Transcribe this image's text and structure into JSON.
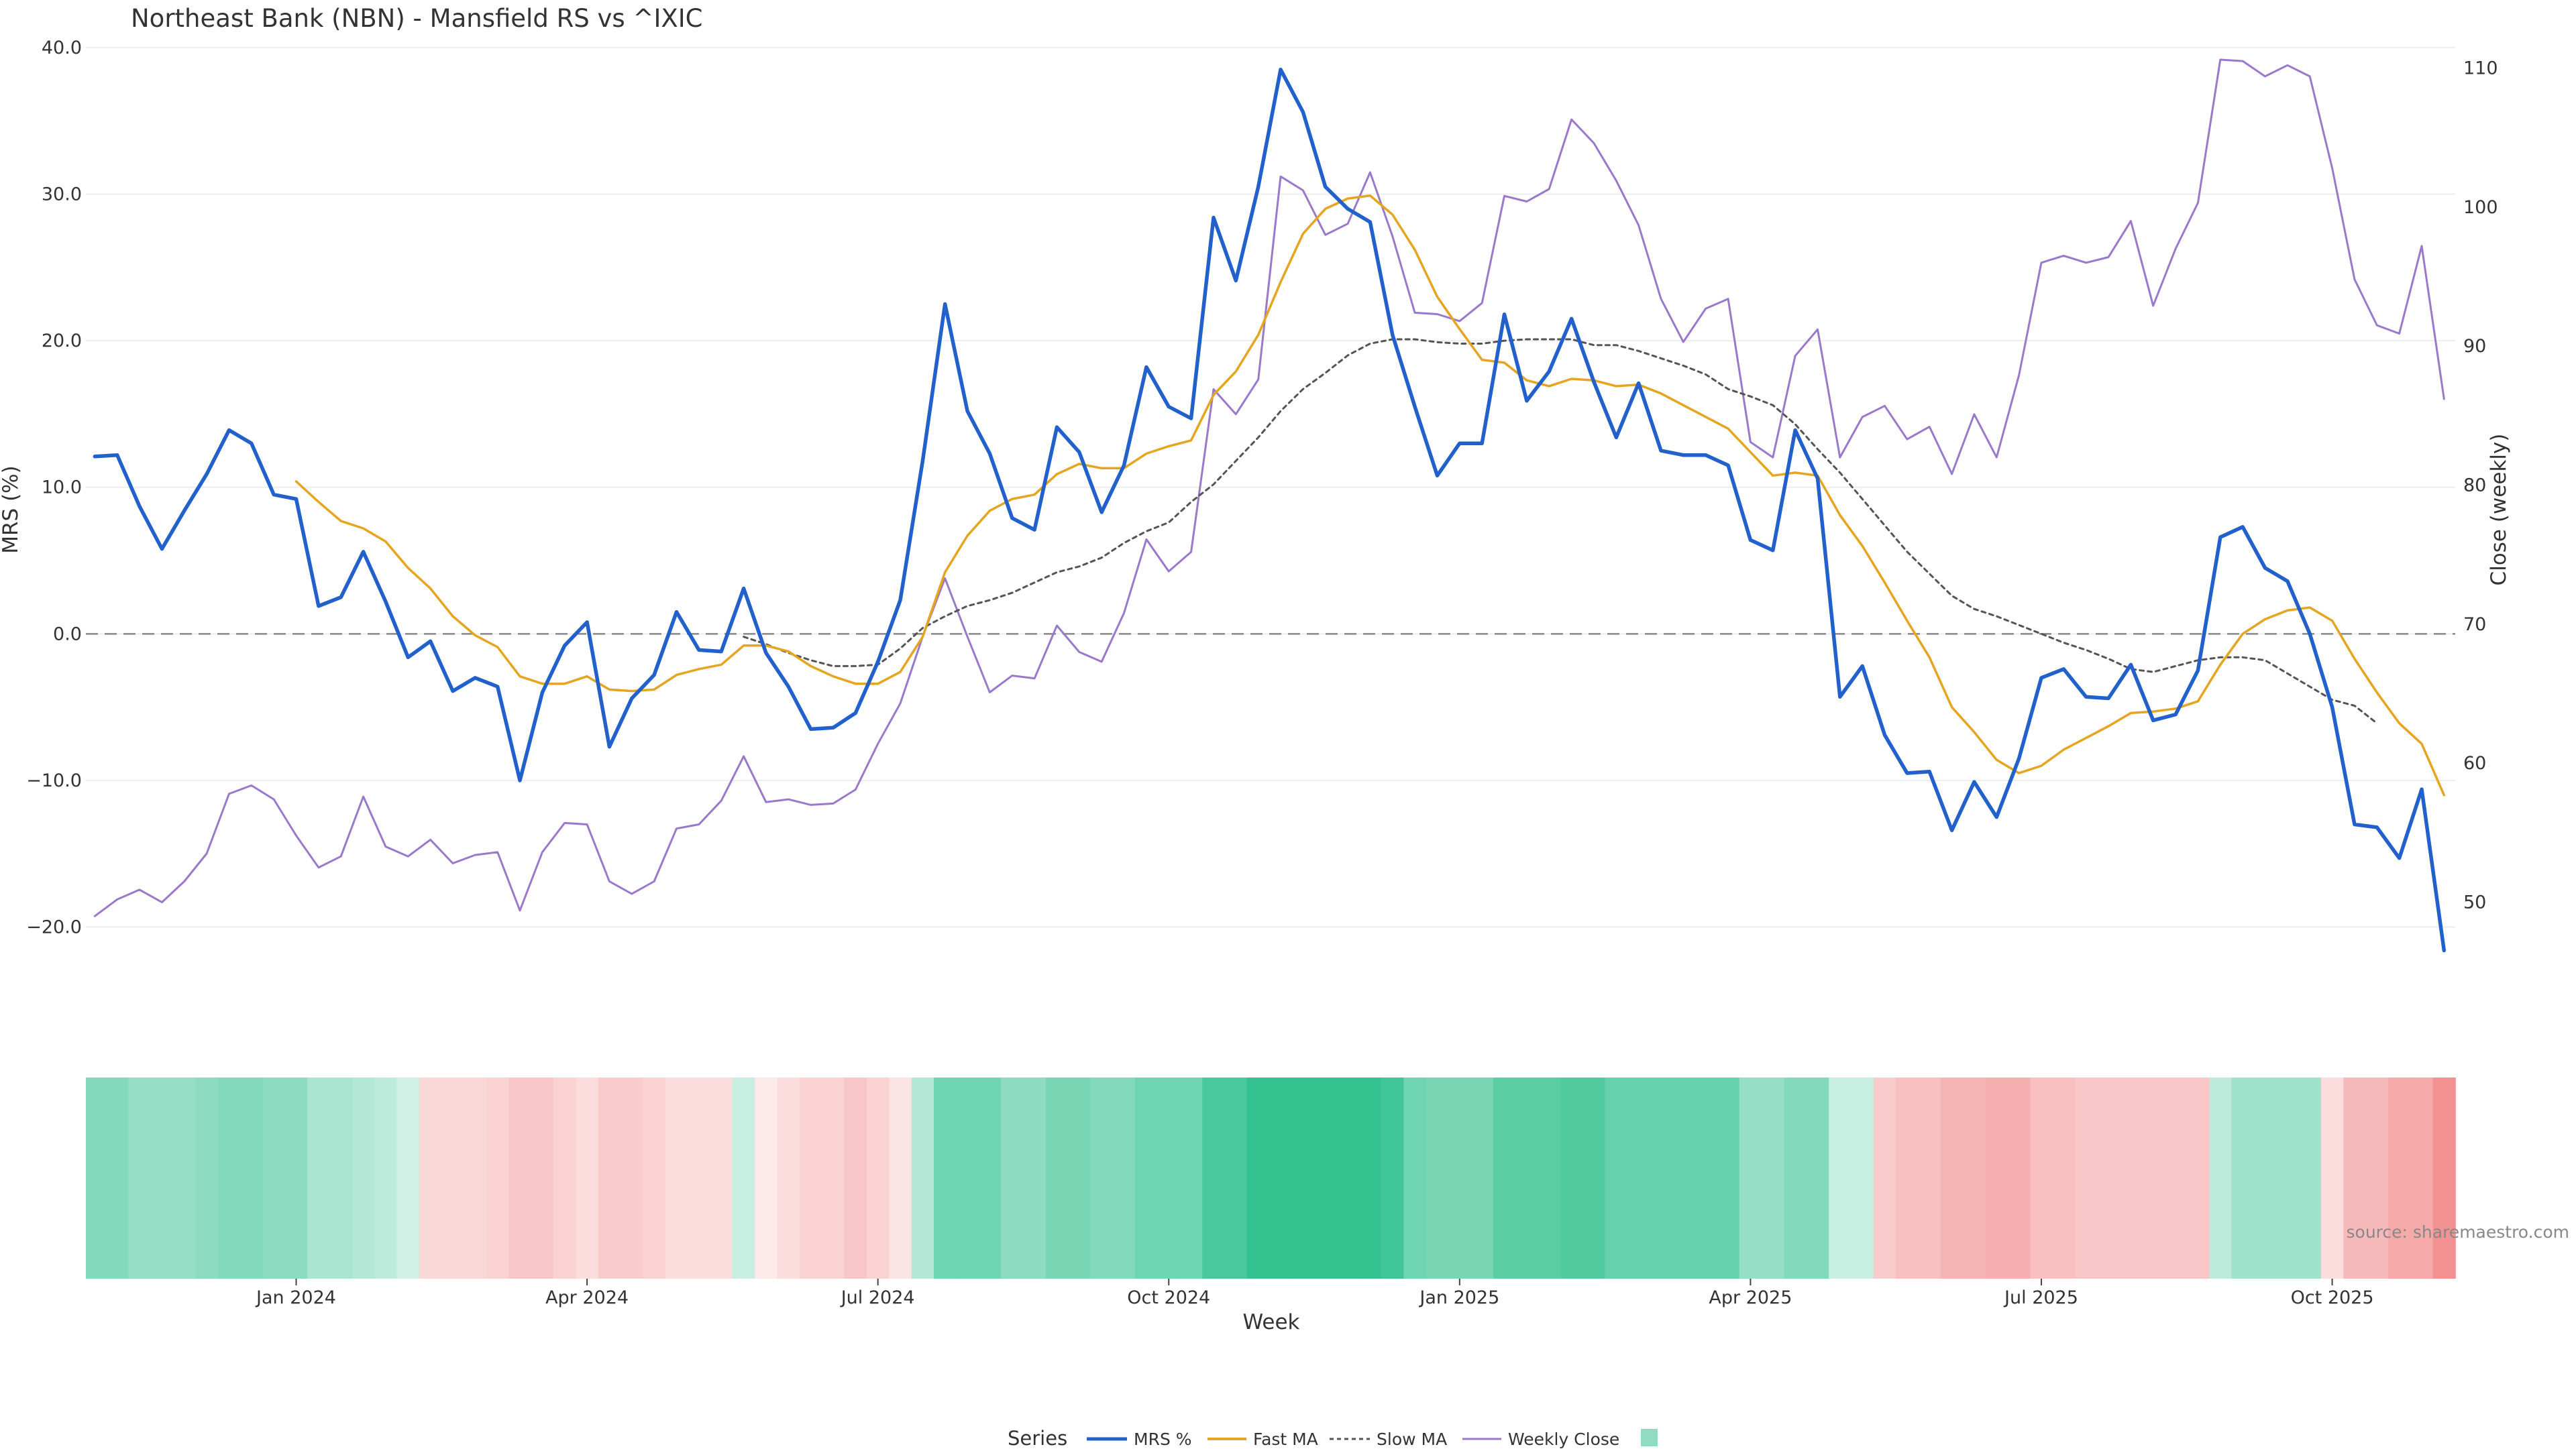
{
  "chart_data": {
    "type": "line",
    "title": "Northeast Bank (NBN) - Mansfield RS vs ^IXIC",
    "xlabel": "Week",
    "ylabel_left": "MRS (%)",
    "ylabel_right": "Close (weekly)",
    "ylim_left": [
      -24,
      40.5
    ],
    "ylim_right": [
      44,
      112
    ],
    "y_ticks_left": [
      40,
      30,
      20,
      10,
      0,
      -10,
      -20
    ],
    "y_tick_labels_left": [
      "40.0",
      "30.0",
      "20.0",
      "10.0",
      "0.0",
      "−10.0",
      "−20.0"
    ],
    "y_ticks_right": [
      110,
      100,
      90,
      80,
      70,
      60,
      50
    ],
    "y_tick_labels_right": [
      "110",
      "100",
      "90",
      "80",
      "70",
      "60",
      "50"
    ],
    "x_ticks": [
      9,
      22,
      35,
      48,
      61,
      74,
      87,
      100
    ],
    "x_tick_labels": [
      "Jan 2024",
      "Apr 2024",
      "Jul 2024",
      "Oct 2024",
      "Jan 2025",
      "Apr 2025",
      "Jul 2025",
      "Oct 2025"
    ],
    "x_range": [
      -0.4,
      105.5
    ],
    "reference_line": {
      "y": 0,
      "style": "dashed"
    },
    "grid": true,
    "legend": {
      "position": "bottom-center",
      "title": "Series",
      "entries": [
        "MRS %",
        "Fast MA",
        "Slow MA",
        "Weekly Close",
        ""
      ]
    },
    "source": "source: sharemaestro.com",
    "colors": {
      "mrs": "#2260cc",
      "fast": "#e6a520",
      "slow": "#555555",
      "close": "#9a79cc",
      "zero": "#888888",
      "grid": "#eeeeee",
      "heat_positive": "#2bbf8c",
      "heat_negative": "#f08080"
    },
    "series": [
      {
        "name": "MRS %",
        "axis": "left",
        "start": 0,
        "values": [
          12.1,
          12.2,
          8.7,
          5.8,
          8.4,
          10.9,
          13.9,
          13.0,
          9.5,
          9.2,
          1.9,
          2.5,
          5.6,
          2.2,
          -1.6,
          -0.5,
          -3.9,
          -3.0,
          -3.6,
          -10.0,
          -4.0,
          -0.8,
          0.8,
          -7.7,
          -4.4,
          -2.8,
          1.5,
          -1.1,
          -1.2,
          3.1,
          -1.3,
          -3.6,
          -6.5,
          -6.4,
          -5.4,
          -1.9,
          2.3,
          11.8,
          22.5,
          15.2,
          12.3,
          7.9,
          7.1,
          14.1,
          12.4,
          8.3,
          11.5,
          18.2,
          15.5,
          14.7,
          28.4,
          24.1,
          30.5,
          38.5,
          35.6,
          30.5,
          29.0,
          28.1,
          20.4,
          15.5,
          10.8,
          13.0,
          13.0,
          21.8,
          15.9,
          17.9,
          21.5,
          17.2,
          13.4,
          17.1,
          12.5,
          12.2,
          12.2,
          11.5,
          6.4,
          5.7,
          13.9,
          10.6,
          -4.3,
          -2.2,
          -6.9,
          -9.5,
          -9.4,
          -13.4,
          -10.1,
          -12.5,
          -8.5,
          -3.0,
          -2.4,
          -4.3,
          -4.4,
          -2.1,
          -5.9,
          -5.5,
          -2.5,
          6.6,
          7.3,
          4.5,
          3.6,
          0.0,
          -5.0,
          -13.0,
          -13.2,
          -15.3,
          -10.6,
          -21.6
        ]
      },
      {
        "name": "Fast MA",
        "axis": "left",
        "start": 9,
        "values": [
          10.4,
          9.0,
          7.7,
          7.2,
          6.3,
          4.5,
          3.1,
          1.2,
          -0.1,
          -0.9,
          -2.9,
          -3.4,
          -3.4,
          -2.9,
          -3.8,
          -3.9,
          -3.8,
          -2.8,
          -2.4,
          -2.1,
          -0.8,
          -0.8,
          -1.2,
          -2.2,
          -2.9,
          -3.4,
          -3.4,
          -2.6,
          -0.2,
          4.2,
          6.7,
          8.4,
          9.2,
          9.5,
          10.9,
          11.6,
          11.3,
          11.3,
          12.3,
          12.8,
          13.2,
          16.3,
          17.9,
          20.4,
          24.0,
          27.3,
          29.0,
          29.7,
          29.9,
          28.6,
          26.2,
          23.0,
          20.8,
          18.7,
          18.5,
          17.3,
          16.9,
          17.4,
          17.3,
          16.9,
          17.0,
          16.4,
          15.6,
          14.8,
          14.0,
          12.4,
          10.8,
          11.0,
          10.8,
          8.1,
          6.0,
          3.5,
          0.9,
          -1.6,
          -5.0,
          -6.7,
          -8.6,
          -9.5,
          -9.0,
          -7.9,
          -7.1,
          -6.3,
          -5.4,
          -5.3,
          -5.1,
          -4.6,
          -2.1,
          0.0,
          1.0,
          1.6,
          1.8,
          0.9,
          -1.7,
          -4.0,
          -6.1,
          -7.5,
          -11.0
        ]
      },
      {
        "name": "Slow MA",
        "axis": "left",
        "start": 29,
        "values": [
          -0.2,
          -0.7,
          -1.3,
          -1.8,
          -2.2,
          -2.2,
          -2.1,
          -1.0,
          0.4,
          1.2,
          1.9,
          2.3,
          2.8,
          3.5,
          4.2,
          4.6,
          5.2,
          6.2,
          7.0,
          7.6,
          9.0,
          10.2,
          11.8,
          13.4,
          15.2,
          16.7,
          17.8,
          19.0,
          19.8,
          20.1,
          20.1,
          19.9,
          19.8,
          19.8,
          20.0,
          20.1,
          20.1,
          20.1,
          19.7,
          19.7,
          19.3,
          18.8,
          18.3,
          17.7,
          16.7,
          16.2,
          15.6,
          14.3,
          12.6,
          11.0,
          9.2,
          7.4,
          5.6,
          4.1,
          2.6,
          1.7,
          1.2,
          0.6,
          0.0,
          -0.6,
          -1.1,
          -1.7,
          -2.4,
          -2.6,
          -2.2,
          -1.8,
          -1.6,
          -1.6,
          -1.8,
          -2.7,
          -3.6,
          -4.5,
          -4.9,
          -6.1
        ]
      },
      {
        "name": "Weekly Close",
        "axis": "right",
        "start": 0,
        "values": [
          49.0,
          50.2,
          50.9,
          50.0,
          51.5,
          53.5,
          57.8,
          58.4,
          57.4,
          54.8,
          52.5,
          53.3,
          57.6,
          54.0,
          53.3,
          54.5,
          52.8,
          53.4,
          53.6,
          49.4,
          53.6,
          55.7,
          55.6,
          51.5,
          50.6,
          51.5,
          55.3,
          55.6,
          57.3,
          60.5,
          57.2,
          57.4,
          57.0,
          57.1,
          58.1,
          61.4,
          64.3,
          69.1,
          73.3,
          69.1,
          65.1,
          66.3,
          66.1,
          69.9,
          68.0,
          67.3,
          70.8,
          76.1,
          73.8,
          75.2,
          86.9,
          85.1,
          87.6,
          102.2,
          101.2,
          98.0,
          98.8,
          102.5,
          97.9,
          92.4,
          92.3,
          91.8,
          93.1,
          100.8,
          100.4,
          101.3,
          106.3,
          104.6,
          101.9,
          98.7,
          93.4,
          90.3,
          92.7,
          93.4,
          83.1,
          82.0,
          89.3,
          91.2,
          82.0,
          84.9,
          85.7,
          83.3,
          84.2,
          80.8,
          85.1,
          82.0,
          87.9,
          96.0,
          96.5,
          96.0,
          96.4,
          99.0,
          92.9,
          97.0,
          100.3,
          110.6,
          110.5,
          109.4,
          110.2,
          109.4,
          102.8,
          94.8,
          91.5,
          90.9,
          97.2,
          86.2
        ]
      }
    ],
    "heatmap": {
      "type": "heatmap",
      "values": [
        0.55,
        0.55,
        0.45,
        0.45,
        0.45,
        0.5,
        0.55,
        0.55,
        0.5,
        0.5,
        0.35,
        0.35,
        0.3,
        0.25,
        0.15,
        -0.25,
        -0.25,
        -0.25,
        -0.3,
        -0.4,
        -0.4,
        -0.3,
        -0.2,
        -0.35,
        -0.35,
        -0.3,
        -0.2,
        -0.2,
        -0.2,
        0.2,
        -0.1,
        -0.2,
        -0.3,
        -0.3,
        -0.4,
        -0.3,
        -0.15,
        0.3,
        0.65,
        0.65,
        0.65,
        0.5,
        0.5,
        0.6,
        0.6,
        0.55,
        0.55,
        0.65,
        0.65,
        0.65,
        0.85,
        0.85,
        0.95,
        0.95,
        0.95,
        0.95,
        0.95,
        0.95,
        0.9,
        0.65,
        0.6,
        0.6,
        0.6,
        0.75,
        0.75,
        0.75,
        0.8,
        0.8,
        0.7,
        0.7,
        0.7,
        0.7,
        0.7,
        0.7,
        0.45,
        0.45,
        0.55,
        0.55,
        0.2,
        0.2,
        -0.35,
        -0.45,
        -0.45,
        -0.55,
        -0.55,
        -0.6,
        -0.6,
        -0.45,
        -0.45,
        -0.4,
        -0.4,
        -0.4,
        -0.4,
        -0.4,
        -0.4,
        0.25,
        0.4,
        0.4,
        0.4,
        0.4,
        -0.2,
        -0.5,
        -0.5,
        -0.65,
        -0.65,
        -0.85
      ]
    }
  }
}
